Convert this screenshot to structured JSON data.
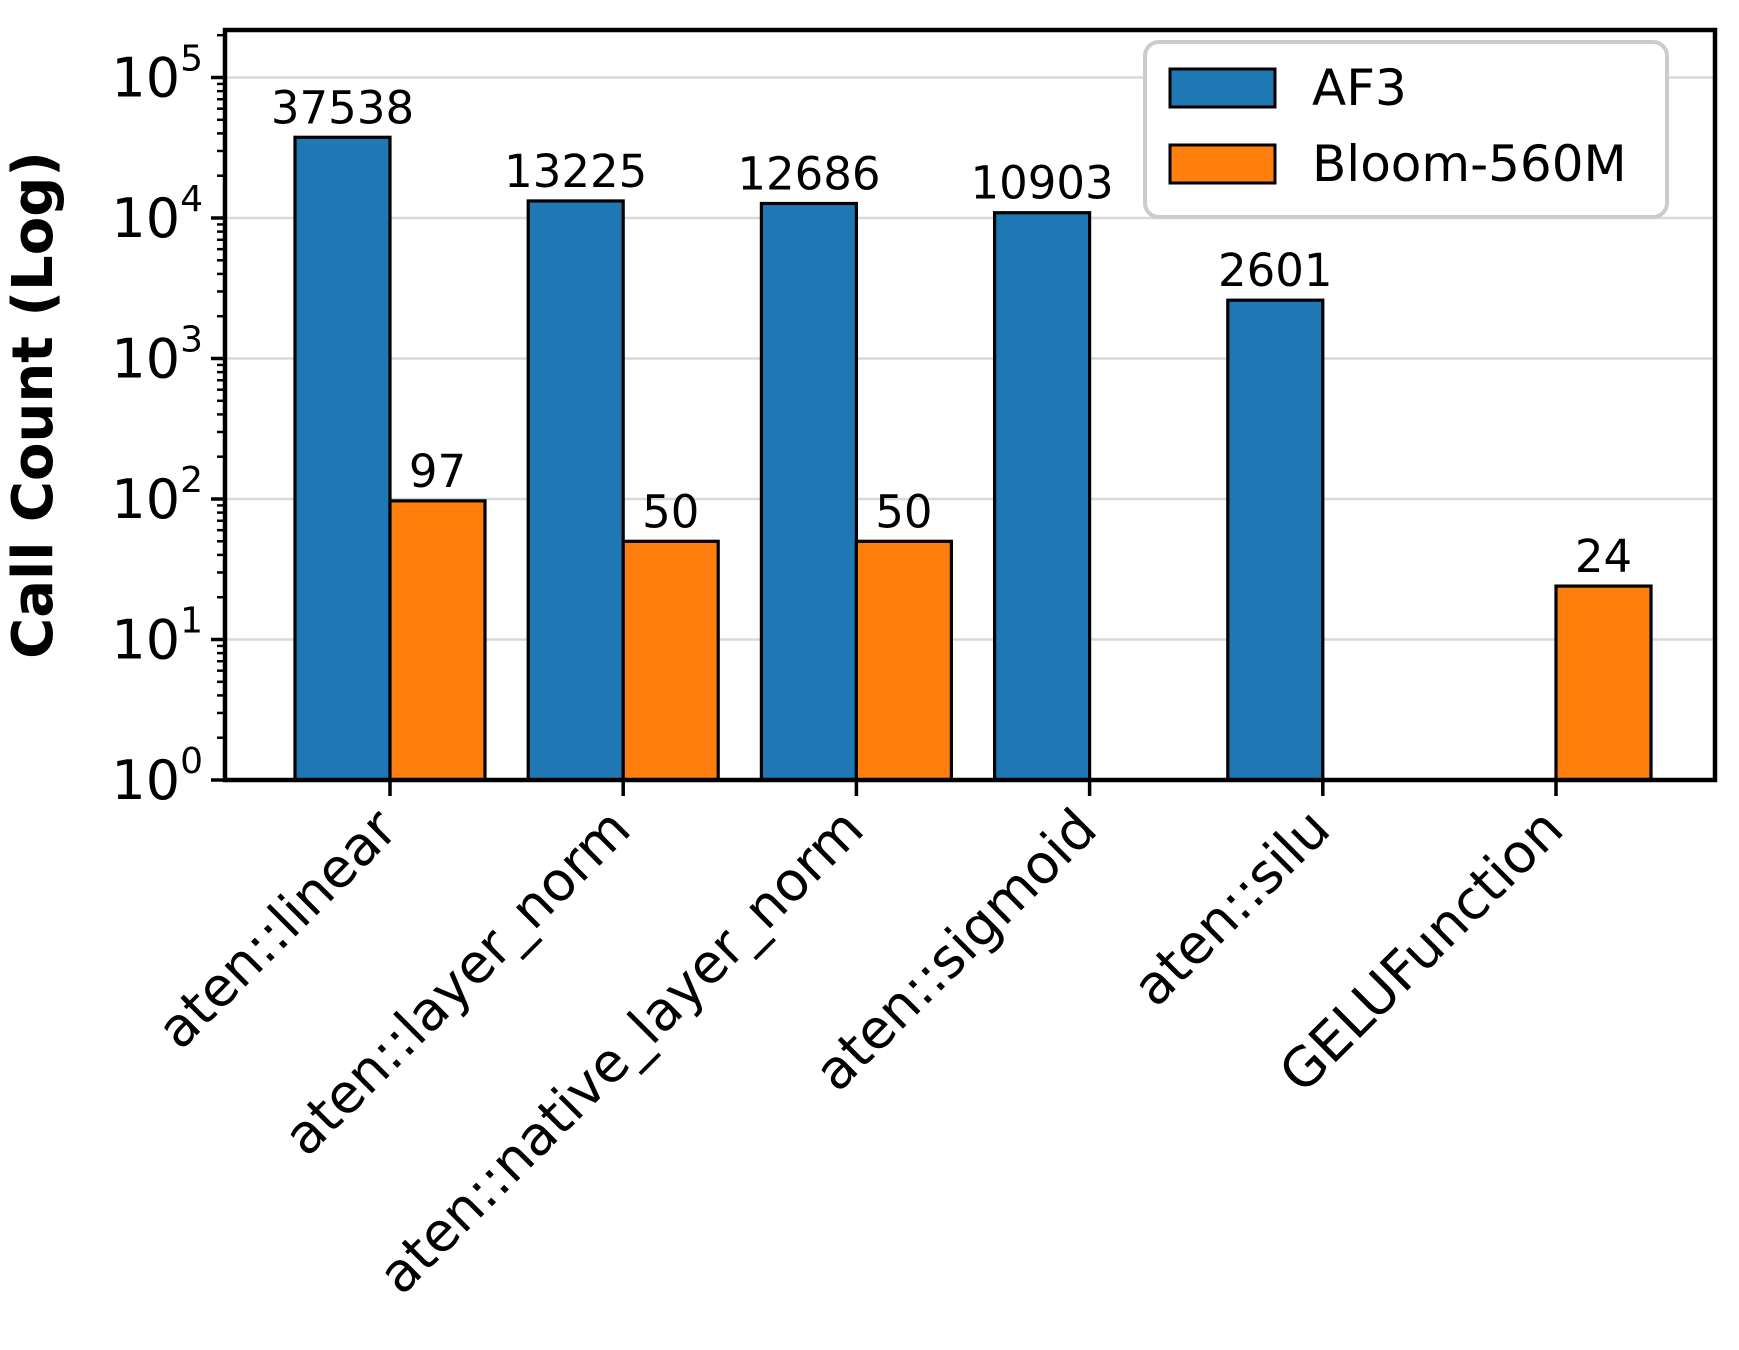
{
  "figure": {
    "background": "#ffffff",
    "axes_edge_color": "#000000",
    "grid_color": "#d9d9d9",
    "bar_edge_color": "#000000",
    "text_color": "#000000",
    "legend_border_color": "#cccccc",
    "legend_background": "#ffffff"
  },
  "chart_data": {
    "type": "bar",
    "title": "",
    "xlabel": "",
    "ylabel": "Call Count (Log)",
    "yscale": "log",
    "ylim": [
      1,
      200000
    ],
    "y_tick_base": "10",
    "y_tick_exponents": [
      0,
      1,
      2,
      3,
      4,
      5
    ],
    "grid": true,
    "grid_axis": "y",
    "legend_position": "upper right",
    "categories": [
      "aten::linear",
      "aten::layer_norm",
      "aten::native_layer_norm",
      "aten::sigmoid",
      "aten::silu",
      "GELUFunction"
    ],
    "series": [
      {
        "name": "AF3",
        "color": "#1f77b4",
        "values": [
          37538,
          13225,
          12686,
          10903,
          2601,
          null
        ]
      },
      {
        "name": "Bloom-560M",
        "color": "#ff7f0e",
        "values": [
          97,
          50,
          50,
          null,
          null,
          24
        ]
      }
    ]
  }
}
